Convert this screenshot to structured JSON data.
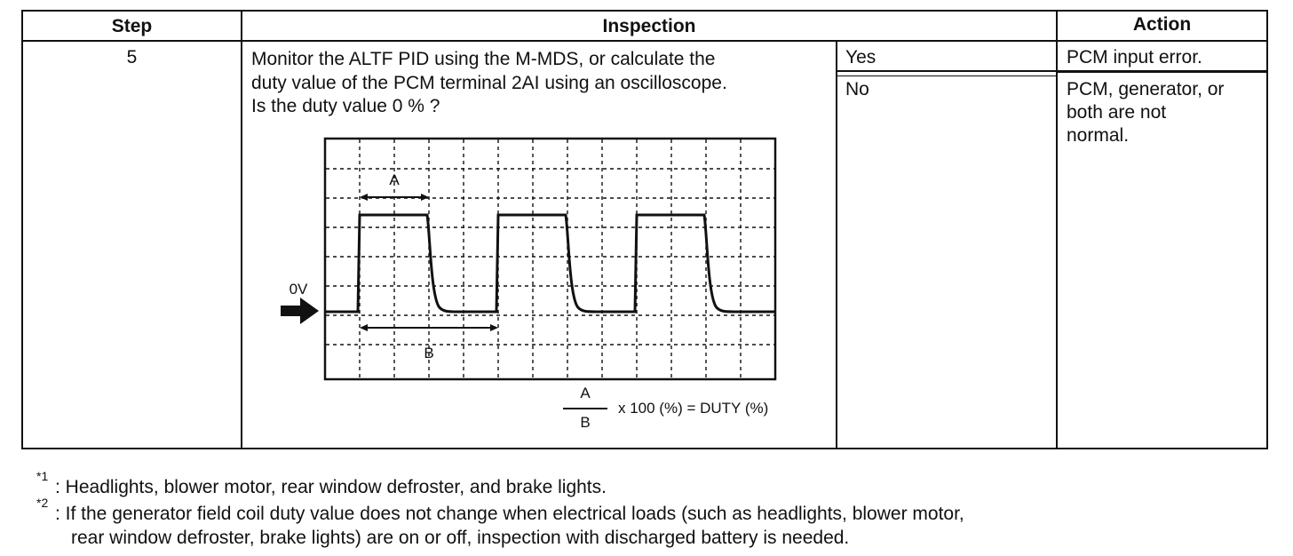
{
  "table": {
    "headers": {
      "step": "Step",
      "inspection": "Inspection",
      "action": "Action"
    },
    "row": {
      "step": "5",
      "inspection_lines": [
        "Monitor the ALTF PID using the M-MDS, or calculate the",
        "duty value of the PCM terminal 2AI using an oscilloscope.",
        "Is the duty value 0 % ?"
      ],
      "results": [
        {
          "answer": "Yes",
          "action_lines": [
            "PCM input error."
          ]
        },
        {
          "answer": "No",
          "action_lines": [
            "PCM, generator, or",
            "both are not",
            "normal."
          ]
        }
      ]
    }
  },
  "diagram": {
    "label_a": "A",
    "label_b": "B",
    "zero_label": "0V",
    "formula_numerator": "A",
    "formula_denominator": "B",
    "formula_rest": "x 100 (%) = DUTY (%)"
  },
  "footnotes": [
    {
      "mark": "*1",
      "lines": [
        ": Headlights, blower motor, rear window defroster, and brake lights."
      ]
    },
    {
      "mark": "*2",
      "lines": [
        ": If the generator field coil duty value does not change when electrical loads (such as headlights, blower motor,",
        "rear window defroster, brake lights) are on or off, inspection with discharged battery is needed."
      ]
    }
  ]
}
